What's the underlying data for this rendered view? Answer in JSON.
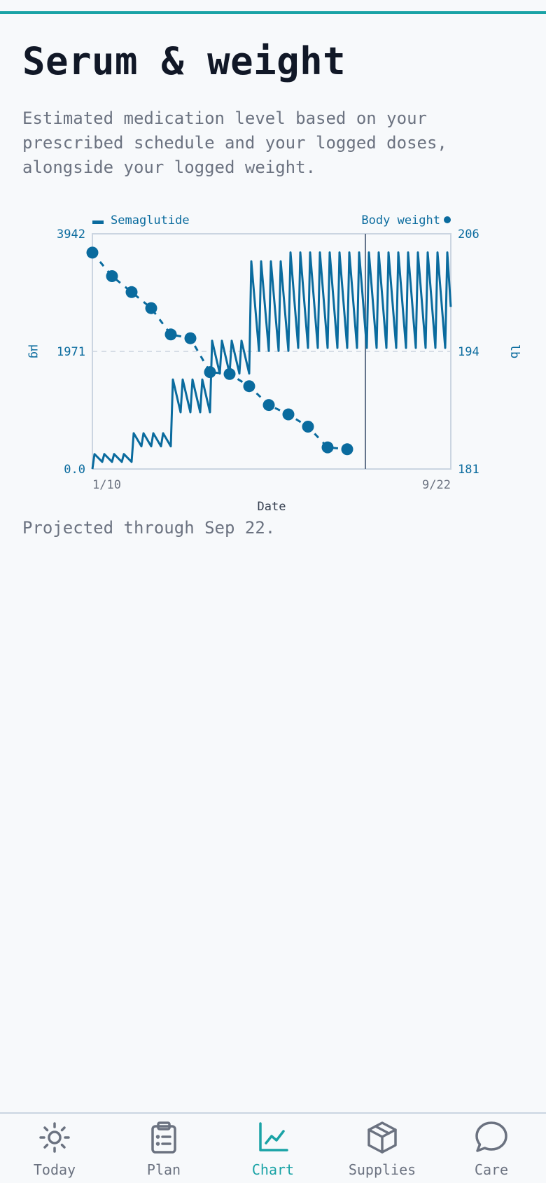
{
  "page": {
    "title": "Serum & weight",
    "description": "Estimated medication level based on your prescribed schedule and your logged doses, alongside your logged weight.",
    "footnote": "Projected through Sep 22."
  },
  "colors": {
    "accent": "#1aa3a6",
    "series": "#0a6b9e",
    "text_dark": "#111827",
    "text_muted": "#6b7280"
  },
  "chart_data": {
    "type": "line",
    "xlabel": "Date",
    "x_tick_labels": [
      "1/10",
      "9/22"
    ],
    "x_range": [
      "2024-01-10",
      "2024-09-22"
    ],
    "today_marker": "2024-07-23",
    "grid": "horizontal dashed",
    "legend": [
      {
        "name": "Semaglutide",
        "marker": "bar",
        "position": "top-left"
      },
      {
        "name": "Body weight",
        "marker": "dot",
        "position": "top-right"
      }
    ],
    "y_left": {
      "label": "μg",
      "ticks": [
        "0.0",
        "1971",
        "3942"
      ],
      "range": [
        0,
        3942
      ]
    },
    "y_right": {
      "label": "lb",
      "ticks": [
        "181",
        "194",
        "206"
      ],
      "range": [
        181,
        206
      ]
    },
    "series": [
      {
        "name": "Semaglutide",
        "axis": "left",
        "style": "sawtooth",
        "dosing_interval_days": 7,
        "dose_phases": [
          {
            "start": "2024-01-10",
            "peak": 250,
            "trough": 120
          },
          {
            "start": "2024-02-07",
            "peak": 600,
            "trough": 380
          },
          {
            "start": "2024-03-06",
            "peak": 1500,
            "trough": 950
          },
          {
            "start": "2024-04-03",
            "peak": 2150,
            "trough": 1600
          },
          {
            "start": "2024-05-01",
            "peak": 3480,
            "trough": 1980
          },
          {
            "start": "2024-05-29",
            "peak": 3630,
            "trough": 2030
          }
        ]
      },
      {
        "name": "Body weight",
        "axis": "right",
        "style": "dashed-with-dots",
        "points": [
          {
            "x": "2024-01-10",
            "y": 204.0
          },
          {
            "x": "2024-01-24",
            "y": 201.5
          },
          {
            "x": "2024-02-07",
            "y": 199.8
          },
          {
            "x": "2024-02-21",
            "y": 198.1
          },
          {
            "x": "2024-03-06",
            "y": 195.3
          },
          {
            "x": "2024-03-20",
            "y": 194.9
          },
          {
            "x": "2024-04-03",
            "y": 191.3
          },
          {
            "x": "2024-04-17",
            "y": 191.1
          },
          {
            "x": "2024-05-01",
            "y": 189.8
          },
          {
            "x": "2024-05-15",
            "y": 187.8
          },
          {
            "x": "2024-05-29",
            "y": 186.8
          },
          {
            "x": "2024-06-12",
            "y": 185.5
          },
          {
            "x": "2024-06-26",
            "y": 183.3
          },
          {
            "x": "2024-07-10",
            "y": 183.1
          }
        ]
      }
    ]
  },
  "tabbar": {
    "tabs": [
      {
        "label": "Today",
        "icon": "sun-icon"
      },
      {
        "label": "Plan",
        "icon": "clipboard-icon"
      },
      {
        "label": "Chart",
        "icon": "line-chart-icon",
        "active": true
      },
      {
        "label": "Supplies",
        "icon": "box-icon"
      },
      {
        "label": "Care",
        "icon": "chat-bubble-icon"
      }
    ]
  }
}
